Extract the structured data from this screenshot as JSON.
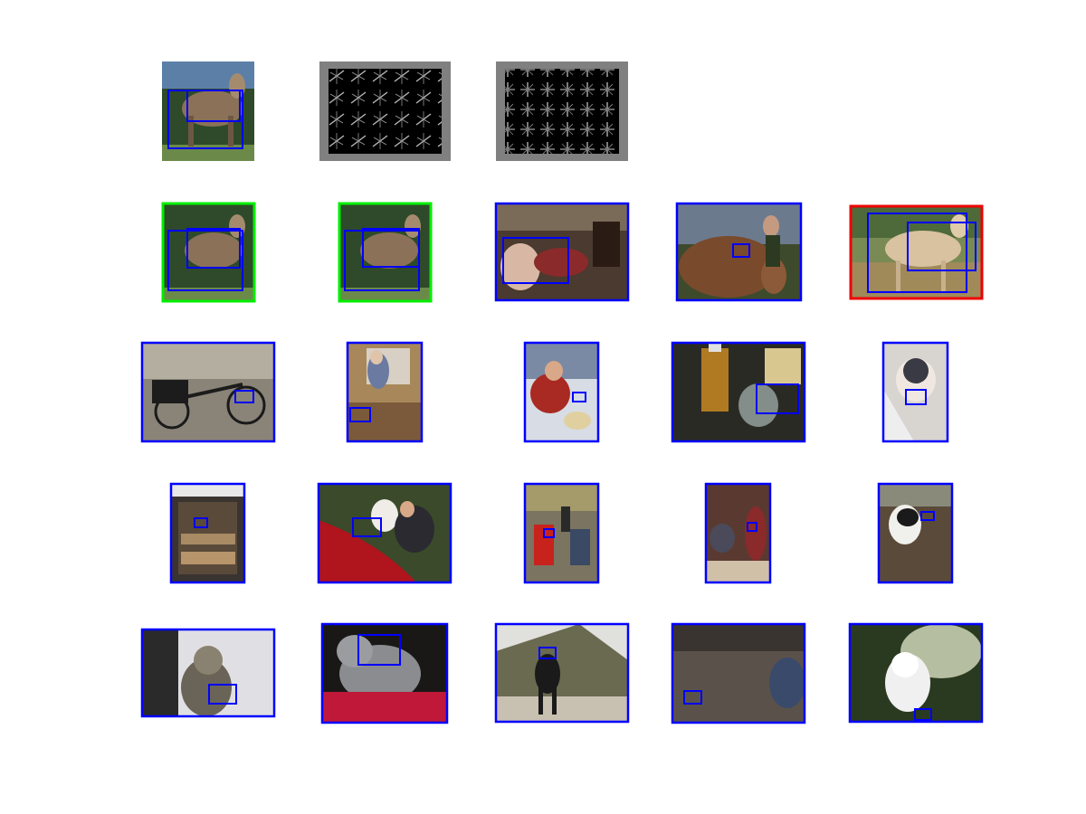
{
  "figure": {
    "description_free": true,
    "border_colors": {
      "detection": "#0000ff",
      "correct": "#00ee00",
      "wrong": "#ee0000",
      "hog_background": "#808080"
    },
    "rows": [
      {
        "name": "query-row",
        "cells": [
          {
            "kind": "photo",
            "palette": "horse",
            "frame": "none"
          },
          {
            "kind": "hog",
            "palette": "hog-a"
          },
          {
            "kind": "hog",
            "palette": "hog-b"
          }
        ]
      },
      {
        "name": "top-detections-row",
        "cells": [
          {
            "kind": "photo",
            "palette": "horse",
            "frame": "correct"
          },
          {
            "kind": "photo",
            "palette": "horse",
            "frame": "correct"
          },
          {
            "kind": "photo",
            "palette": "people-room",
            "frame": "detection"
          },
          {
            "kind": "photo",
            "palette": "cow-brown",
            "frame": "detection"
          },
          {
            "kind": "photo",
            "palette": "horse-light",
            "frame": "wrong"
          }
        ]
      },
      {
        "name": "row-3",
        "cells": [
          {
            "kind": "photo",
            "palette": "bicycle",
            "frame": "detection"
          },
          {
            "kind": "photo",
            "palette": "kitchen",
            "frame": "detection"
          },
          {
            "kind": "photo",
            "palette": "person-eating",
            "frame": "detection"
          },
          {
            "kind": "photo",
            "palette": "bottle-table",
            "frame": "detection"
          },
          {
            "kind": "photo",
            "palette": "siamese-cat",
            "frame": "detection"
          }
        ]
      },
      {
        "name": "row-4",
        "cells": [
          {
            "kind": "photo",
            "palette": "oven",
            "frame": "detection"
          },
          {
            "kind": "photo",
            "palette": "wedding-car",
            "frame": "detection"
          },
          {
            "kind": "photo",
            "palette": "motorbikes",
            "frame": "detection"
          },
          {
            "kind": "photo",
            "palette": "party",
            "frame": "detection"
          },
          {
            "kind": "photo",
            "palette": "cow-bw",
            "frame": "detection"
          }
        ]
      },
      {
        "name": "row-5",
        "cells": [
          {
            "kind": "photo",
            "palette": "tabby-cat",
            "frame": "detection"
          },
          {
            "kind": "photo",
            "palette": "grey-cat",
            "frame": "detection"
          },
          {
            "kind": "photo",
            "palette": "black-cow",
            "frame": "detection"
          },
          {
            "kind": "photo",
            "palette": "rocky-ground",
            "frame": "detection"
          },
          {
            "kind": "photo",
            "palette": "lucky-cat",
            "frame": "detection"
          }
        ]
      }
    ]
  }
}
